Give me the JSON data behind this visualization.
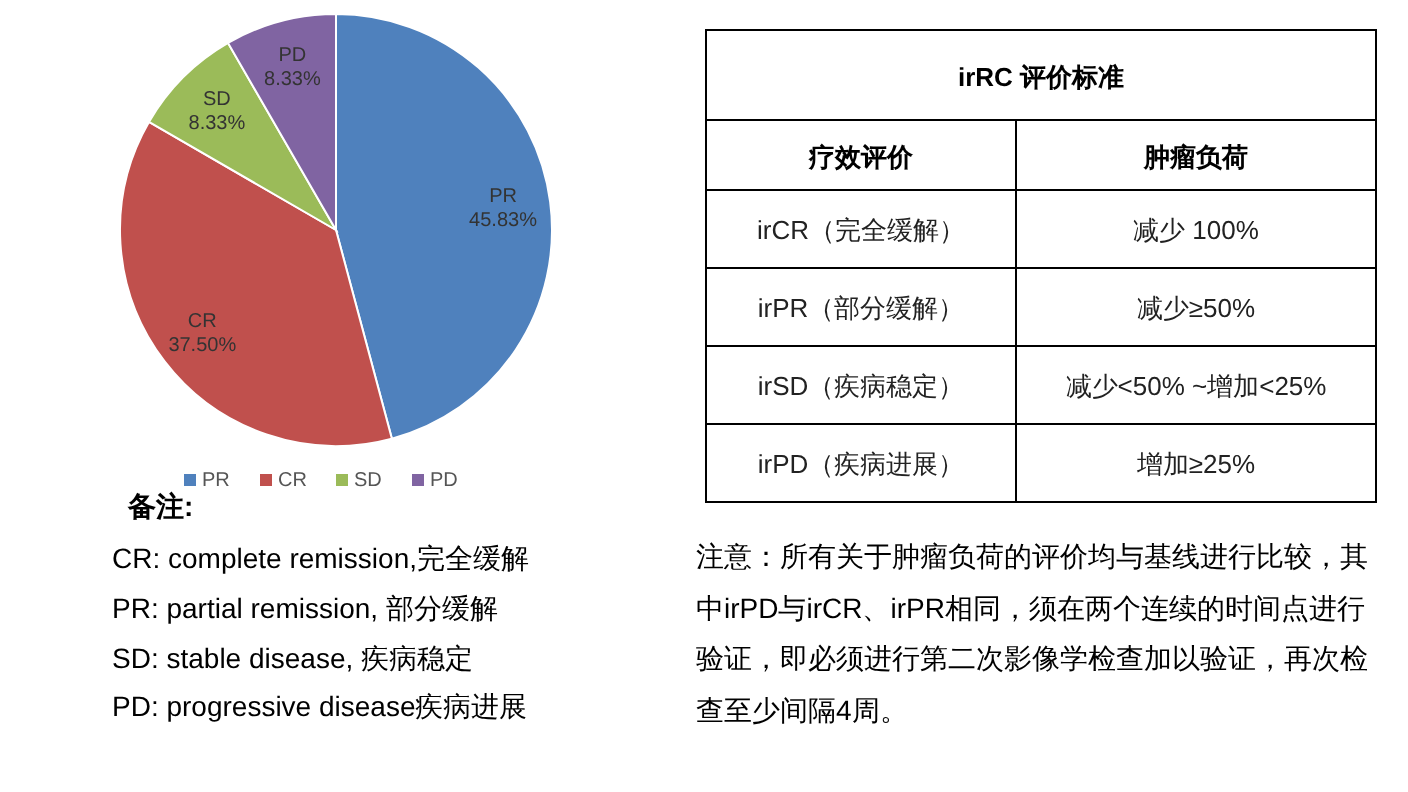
{
  "chart_data": [
    {
      "type": "pie",
      "categories": [
        "PR",
        "CR",
        "SD",
        "PD"
      ],
      "values": [
        45.83,
        37.5,
        8.33,
        8.33
      ],
      "colors": [
        "#4f81bd",
        "#c0504d",
        "#9bbb59",
        "#8064a2"
      ],
      "value_labels": [
        "45.83%",
        "37.50%",
        "8.33%",
        "8.33%"
      ],
      "legend": "bottom",
      "annotations": [
        "备注:",
        "CR: complete remission,完全缓解",
        "PR:  partial remission, 部分缓解",
        "SD:  stable disease, 疾病稳定",
        "PD:  progressive disease疾病进展"
      ]
    },
    {
      "type": "other",
      "title": "irRC 评价标准",
      "categories": [
        "疗效评价",
        "肿瘤负荷"
      ],
      "y_categories": [
        "irCR（完全缓解）",
        "irPR（部分缓解）",
        "irSD（疾病稳定）",
        "irPD（疾病进展）"
      ],
      "y2_categories": [
        "减少 100%",
        "减少≥50%",
        "减少<50%  ~增加<25%",
        "增加≥25%"
      ],
      "annotations": [
        "注意：所有关于肿瘤负荷的评价均与基线进行比较，其中irPD与irCR、irPR相同，须在两个连续的时间点进行验证，即必须进行第二次影像学检查加以验证，再次检查至少间隔4周。"
      ]
    }
  ]
}
